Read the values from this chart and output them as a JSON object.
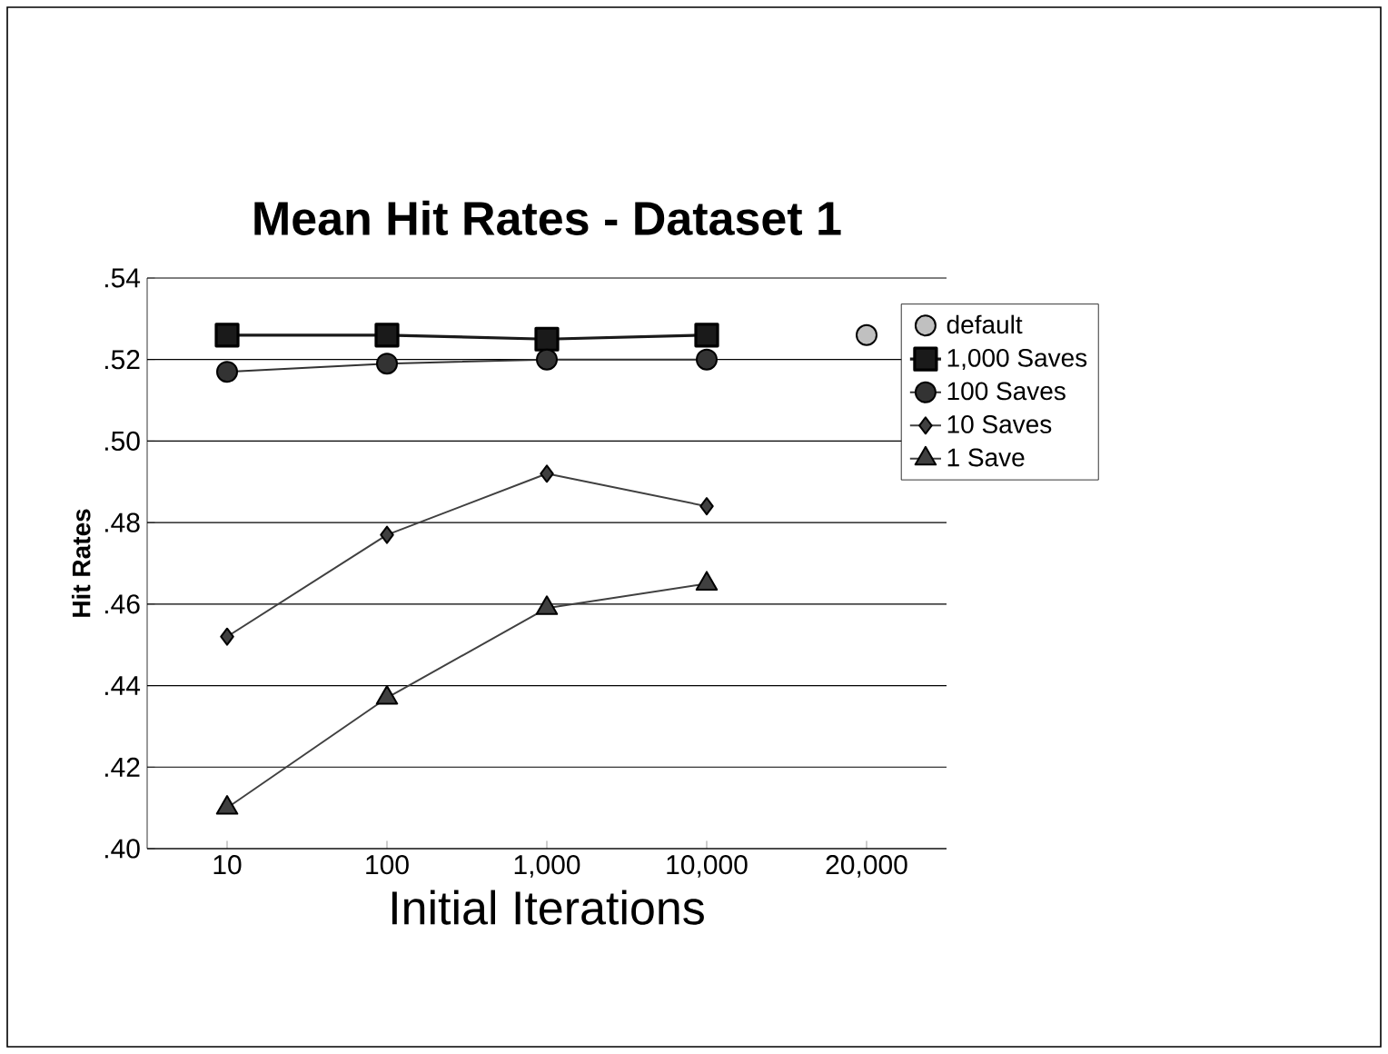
{
  "chart_data": {
    "type": "line",
    "title": "Mean Hit Rates - Dataset 1",
    "xlabel": "Initial Iterations",
    "ylabel": "Hit Rates",
    "categories": [
      "10",
      "100",
      "1,000",
      "10,000",
      "20,000"
    ],
    "series": [
      {
        "name": "default",
        "type": "scatter",
        "marker": "circle",
        "color": "#c0c0c0",
        "values": [
          null,
          null,
          null,
          null,
          0.526
        ]
      },
      {
        "name": "1,000 Saves",
        "marker": "square",
        "color": "#1a1a1a",
        "values": [
          0.526,
          0.526,
          0.525,
          0.526,
          null
        ]
      },
      {
        "name": "100 Saves",
        "marker": "circle",
        "color": "#333333",
        "values": [
          0.517,
          0.519,
          0.52,
          0.52,
          null
        ]
      },
      {
        "name": "10 Saves",
        "marker": "diamond",
        "color": "#404040",
        "values": [
          0.452,
          0.477,
          0.492,
          0.484,
          null
        ]
      },
      {
        "name": "1 Save",
        "marker": "triangle",
        "color": "#404040",
        "values": [
          0.41,
          0.437,
          0.459,
          0.465,
          null
        ]
      }
    ],
    "ylim": [
      0.4,
      0.54
    ],
    "yticks": [
      {
        "value": 0.4,
        "label": ".40"
      },
      {
        "value": 0.42,
        "label": ".42"
      },
      {
        "value": 0.44,
        "label": ".44"
      },
      {
        "value": 0.46,
        "label": ".46"
      },
      {
        "value": 0.48,
        "label": ".48"
      },
      {
        "value": 0.5,
        "label": ".50"
      },
      {
        "value": 0.52,
        "label": ".52"
      },
      {
        "value": 0.54,
        "label": ".54"
      }
    ],
    "grid": "y",
    "legend": "right"
  }
}
